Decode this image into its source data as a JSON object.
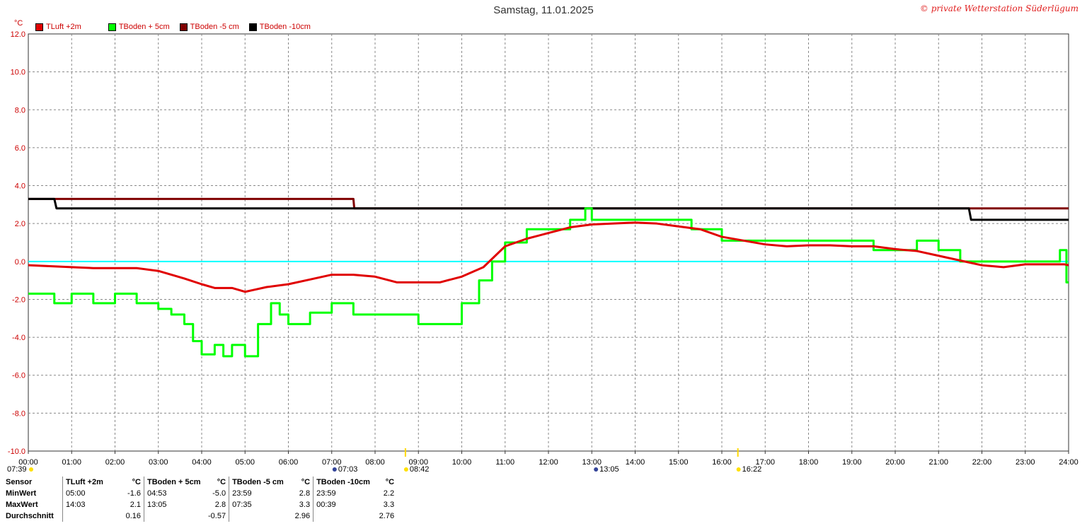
{
  "title": "Samstag, 11.01.2025",
  "copyright": "© private Wetterstation Süderlügum",
  "y_unit": "°C",
  "legend": [
    {
      "label": "TLuft +2m",
      "color": "#e00000"
    },
    {
      "label": "TBoden + 5cm",
      "color": "#00ff00"
    },
    {
      "label": "TBoden -5 cm",
      "color": "#800000"
    },
    {
      "label": "TBoden -10cm",
      "color": "#000000"
    }
  ],
  "sun_events": [
    {
      "label": "07:39",
      "time": 7.65
    },
    {
      "label": "07:03",
      "time": 7.05
    },
    {
      "label": "08:42",
      "time": 8.7
    },
    {
      "label": "13:05",
      "time": 13.08
    },
    {
      "label": "16:22",
      "time": 16.37
    }
  ],
  "chart_data": {
    "type": "line",
    "title": "Samstag, 11.01.2025",
    "ylabel": "°C",
    "ylim": [
      -10,
      12
    ],
    "xlim": [
      0,
      24
    ],
    "x_ticks": [
      "00:00",
      "01:00",
      "02:00",
      "03:00",
      "04:00",
      "05:00",
      "06:00",
      "07:00",
      "08:00",
      "09:00",
      "10:00",
      "11:00",
      "12:00",
      "13:00",
      "14:00",
      "15:00",
      "16:00",
      "17:00",
      "18:00",
      "19:00",
      "20:00",
      "21:00",
      "22:00",
      "23:00",
      "24:00"
    ],
    "y_ticks": [
      "-10.0",
      "-8.0",
      "-6.0",
      "-4.0",
      "-2.0",
      "0.0",
      "2.0",
      "4.0",
      "6.0",
      "8.0",
      "10.0",
      "12.0"
    ],
    "grid": true,
    "zero_line_color": "#00ffff",
    "series": [
      {
        "name": "TLuft +2m",
        "color": "#e00000",
        "x": [
          0,
          0.5,
          1,
          1.5,
          2,
          2.5,
          3,
          3.3,
          3.6,
          4,
          4.3,
          4.7,
          5,
          5.2,
          5.5,
          6,
          6.5,
          7,
          7.5,
          8,
          8.5,
          9,
          9.5,
          10,
          10.5,
          11,
          11.5,
          12,
          12.5,
          13,
          13.5,
          14,
          14.5,
          15,
          15.5,
          16,
          16.5,
          17,
          17.5,
          18,
          18.5,
          19,
          19.5,
          20,
          20.5,
          21,
          21.5,
          22,
          22.5,
          23,
          23.5,
          23.9,
          24
        ],
        "y": [
          -0.2,
          -0.25,
          -0.3,
          -0.35,
          -0.35,
          -0.35,
          -0.5,
          -0.7,
          -0.9,
          -1.2,
          -1.4,
          -1.4,
          -1.6,
          -1.5,
          -1.35,
          -1.2,
          -0.95,
          -0.7,
          -0.7,
          -0.8,
          -1.1,
          -1.1,
          -1.1,
          -0.8,
          -0.3,
          0.8,
          1.2,
          1.5,
          1.8,
          1.95,
          2.0,
          2.05,
          2.0,
          1.85,
          1.7,
          1.3,
          1.1,
          0.9,
          0.8,
          0.85,
          0.85,
          0.8,
          0.8,
          0.65,
          0.55,
          0.3,
          0.05,
          -0.2,
          -0.3,
          -0.15,
          -0.15,
          -0.15,
          -0.2
        ]
      },
      {
        "name": "TBoden + 5cm",
        "color": "#00ff00",
        "x": [
          0,
          0.4,
          0.6,
          1,
          1.5,
          2,
          2.5,
          3,
          3.3,
          3.6,
          3.8,
          4,
          4.3,
          4.5,
          4.7,
          5,
          5.3,
          5.6,
          5.8,
          6,
          6.5,
          7,
          7.5,
          8,
          8.5,
          9,
          9.4,
          10,
          10.4,
          10.7,
          11,
          11.5,
          12,
          12.5,
          12.75,
          12.85,
          13,
          14,
          15,
          15.3,
          16,
          17,
          18,
          19,
          19.5,
          20,
          20.5,
          21,
          21.5,
          22,
          22.5,
          23,
          23.5,
          23.8,
          23.95,
          24
        ],
        "y": [
          -1.7,
          -1.7,
          -2.2,
          -1.7,
          -2.2,
          -1.7,
          -2.2,
          -2.5,
          -2.8,
          -3.3,
          -4.2,
          -4.9,
          -4.4,
          -5.0,
          -4.4,
          -5.0,
          -3.3,
          -2.2,
          -2.8,
          -3.3,
          -2.7,
          -2.2,
          -2.8,
          -2.8,
          -2.8,
          -3.3,
          -3.3,
          -2.2,
          -1.0,
          0.0,
          1.0,
          1.7,
          1.7,
          2.2,
          2.2,
          2.8,
          2.2,
          2.2,
          2.2,
          1.7,
          1.1,
          1.1,
          1.1,
          1.1,
          0.6,
          0.6,
          1.1,
          0.6,
          0.0,
          0.0,
          0.0,
          0.0,
          0.0,
          0.6,
          -1.1,
          -1.1
        ]
      },
      {
        "name": "TBoden -5 cm",
        "color": "#800000",
        "x": [
          0,
          0.6,
          0.62,
          7.5,
          7.52,
          21.7,
          21.72,
          24
        ],
        "y": [
          3.3,
          3.3,
          3.3,
          3.3,
          2.8,
          2.8,
          2.8,
          2.8
        ]
      },
      {
        "name": "TBoden -10cm",
        "color": "#000000",
        "x": [
          0,
          0.6,
          0.65,
          21.7,
          21.75,
          24
        ],
        "y": [
          3.3,
          3.3,
          2.8,
          2.8,
          2.2,
          2.2
        ]
      }
    ]
  },
  "stats": {
    "headers": [
      "Sensor",
      "TLuft +2m",
      "°C",
      "TBoden + 5cm",
      "°C",
      "TBoden -5 cm",
      "°C",
      "TBoden -10cm",
      "°C"
    ],
    "rows": [
      [
        "MinWert",
        "05:00",
        "-1.6",
        "04:53",
        "-5.0",
        "23:59",
        "2.8",
        "23:59",
        "2.2"
      ],
      [
        "MaxWert",
        "14:03",
        "2.1",
        "13:05",
        "2.8",
        "07:35",
        "3.3",
        "00:39",
        "3.3"
      ],
      [
        "Durchschnitt",
        "",
        "0.16",
        "",
        "-0.57",
        "",
        "2.96",
        "",
        "2.76"
      ]
    ]
  }
}
